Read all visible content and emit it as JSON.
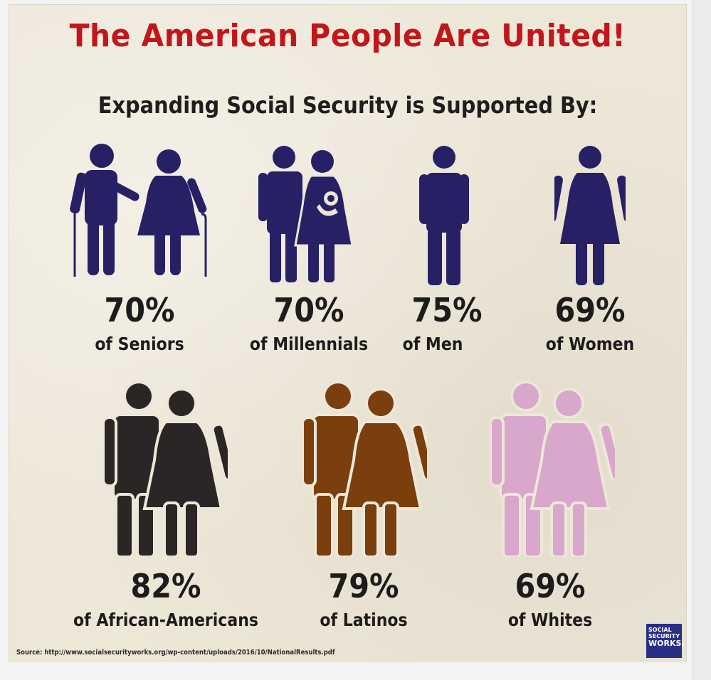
{
  "title": "The American People Are United!",
  "subtitle": "Expanding Social Security  is Supported By:",
  "colors": {
    "title_red": "#c3161b",
    "navy": "#272064",
    "black": "#2b2626",
    "brown": "#7a3f0d",
    "pink": "#d9a6cc",
    "background": "#ede7d8"
  },
  "groups": [
    {
      "percent": "70%",
      "label": "of Seniors",
      "value": 70,
      "icon": "senior-couple-icon"
    },
    {
      "percent": "70%",
      "label": "of Millennials",
      "value": 70,
      "icon": "millennial-family-icon"
    },
    {
      "percent": "75%",
      "label": "of Men",
      "value": 75,
      "icon": "man-icon"
    },
    {
      "percent": "69%",
      "label": "of Women",
      "value": 69,
      "icon": "woman-icon"
    },
    {
      "percent": "82%",
      "label": "of African-Americans",
      "value": 82,
      "icon": "couple-icon"
    },
    {
      "percent": "79%",
      "label": "of Latinos",
      "value": 79,
      "icon": "couple-icon"
    },
    {
      "percent": "69%",
      "label": "of Whites",
      "value": 69,
      "icon": "couple-icon"
    }
  ],
  "source": "Source: http://www.socialsecurityworks.org/wp-content/uploads/2016/10/NationalResults.pdf",
  "logo": {
    "line1": "SOCIAL",
    "line2": "SECURITY",
    "line3": "WORKS."
  }
}
